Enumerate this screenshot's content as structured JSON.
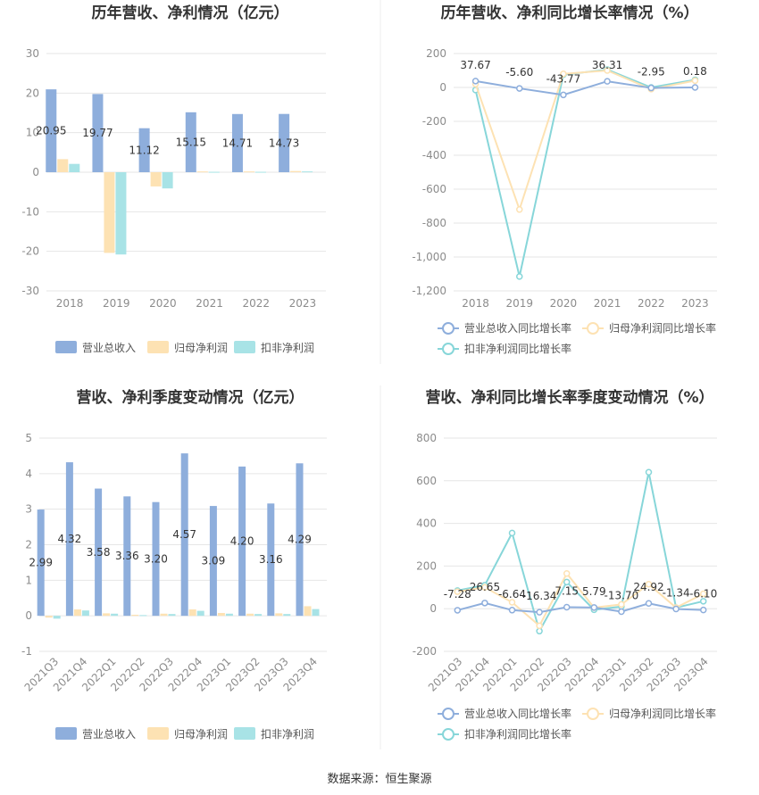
{
  "source_text": "数据来源：恒生聚源",
  "legend_labels": {
    "revenue": "营业总收入",
    "net": "归母净利润",
    "deducted": "扣非净利润",
    "revenue_g": "营业总收入同比增长率",
    "net_g": "归母净利润同比增长率",
    "deducted_g": "扣非净利润同比增长率"
  },
  "colors": {
    "revenue": "#8eaedc",
    "net": "#fde2b3",
    "deducted": "#a8e3e6",
    "revenue_line": "#8eaedc",
    "net_line": "#fde2b3",
    "deducted_line": "#87d6d9",
    "grid": "#e6e6e6",
    "divider": "#eeeeee"
  },
  "chart_data": [
    {
      "type": "bar",
      "title": "历年营收、净利情况（亿元）",
      "categories": [
        "2018",
        "2019",
        "2020",
        "2021",
        "2022",
        "2023"
      ],
      "ylim": [
        -30,
        30
      ],
      "yticks": [
        30,
        20,
        10,
        0,
        -10,
        -20,
        -30
      ],
      "grid": true,
      "legend_position": "bottom",
      "series": [
        {
          "name": "营业总收入",
          "key": "revenue",
          "values": [
            20.95,
            19.77,
            11.12,
            15.15,
            14.71,
            14.73
          ],
          "labels": [
            "20.95",
            "19.77",
            "11.12",
            "15.15",
            "14.71",
            "14.73"
          ]
        },
        {
          "name": "归母净利润",
          "key": "net",
          "values": [
            3.3,
            -20.4,
            -3.6,
            0.2,
            0.2,
            0.3
          ]
        },
        {
          "name": "扣非净利润",
          "key": "deducted",
          "values": [
            2.1,
            -20.8,
            -4.1,
            0.1,
            0.1,
            0.2
          ]
        }
      ]
    },
    {
      "type": "line",
      "title": "历年营收、净利同比增长率情况（%）",
      "categories": [
        "2018",
        "2019",
        "2020",
        "2021",
        "2022",
        "2023"
      ],
      "ylim": [
        -1200,
        200
      ],
      "yticks": [
        200,
        0,
        -200,
        -400,
        -600,
        -800,
        -1000,
        -1200
      ],
      "ytick_labels": [
        "200",
        "0",
        "-200",
        "-400",
        "-600",
        "-800",
        "-1,000",
        "-1,200"
      ],
      "grid": true,
      "legend_position": "bottom",
      "series": [
        {
          "name": "营业总收入同比增长率",
          "key": "revenue_g",
          "values": [
            37.67,
            -5.6,
            -43.77,
            36.31,
            -2.95,
            0.18
          ],
          "labels": [
            "37.67",
            "-5.60",
            "-43.77",
            "36.31",
            "-2.95",
            "0.18"
          ]
        },
        {
          "name": "归母净利润同比增长率",
          "key": "net_g",
          "values": [
            20,
            -720,
            80,
            100,
            -10,
            40
          ]
        },
        {
          "name": "扣非净利润同比增长率",
          "key": "deducted_g",
          "values": [
            -15,
            -1115,
            75,
            105,
            0,
            45
          ]
        }
      ]
    },
    {
      "type": "bar",
      "title": "营收、净利季度变动情况（亿元）",
      "categories": [
        "2021Q3",
        "2021Q4",
        "2022Q1",
        "2022Q2",
        "2022Q3",
        "2022Q4",
        "2023Q1",
        "2023Q2",
        "2023Q3",
        "2023Q4"
      ],
      "ylim": [
        -1,
        5
      ],
      "yticks": [
        5,
        4,
        3,
        2,
        1,
        0,
        -1
      ],
      "grid": true,
      "legend_position": "bottom",
      "series": [
        {
          "name": "营业总收入",
          "key": "revenue",
          "values": [
            2.99,
            4.32,
            3.58,
            3.36,
            3.2,
            4.57,
            3.09,
            4.2,
            3.16,
            4.29
          ],
          "labels": [
            "2.99",
            "4.32",
            "3.58",
            "3.36",
            "3.20",
            "4.57",
            "3.09",
            "4.20",
            "3.16",
            "4.29"
          ]
        },
        {
          "name": "归母净利润",
          "key": "net",
          "values": [
            -0.05,
            0.18,
            0.07,
            0.03,
            0.06,
            0.18,
            0.08,
            0.06,
            0.07,
            0.27
          ]
        },
        {
          "name": "扣非净利润",
          "key": "deducted",
          "values": [
            -0.08,
            0.15,
            0.06,
            0.02,
            0.05,
            0.14,
            0.06,
            0.05,
            0.05,
            0.19
          ]
        }
      ]
    },
    {
      "type": "line",
      "title": "营收、净利同比增长率季度变动情况（%）",
      "categories": [
        "2021Q3",
        "2021Q4",
        "2022Q1",
        "2022Q2",
        "2022Q3",
        "2022Q4",
        "2023Q1",
        "2023Q2",
        "2023Q3",
        "2023Q4"
      ],
      "ylim": [
        -200,
        800
      ],
      "yticks": [
        800,
        600,
        400,
        200,
        0,
        -200
      ],
      "grid": true,
      "legend_position": "bottom",
      "series": [
        {
          "name": "营业总收入同比增长率",
          "key": "revenue_g",
          "values": [
            -7.28,
            26.65,
            -6.64,
            -16.34,
            7.15,
            5.79,
            -13.7,
            24.92,
            -1.34,
            -6.1
          ],
          "labels": [
            "-7.28",
            "26.65",
            "-6.64",
            "-16.34",
            "7.15",
            "5.79",
            "-13.70",
            "24.92",
            "-1.34",
            "-6.10"
          ]
        },
        {
          "name": "归母净利润同比增长率",
          "key": "net_g",
          "values": [
            80,
            100,
            30,
            -80,
            165,
            5,
            20,
            115,
            5,
            70
          ]
        },
        {
          "name": "扣非净利润同比增长率",
          "key": "deducted_g",
          "values": [
            85,
            110,
            355,
            -105,
            125,
            -5,
            10,
            640,
            5,
            35
          ]
        }
      ]
    }
  ]
}
